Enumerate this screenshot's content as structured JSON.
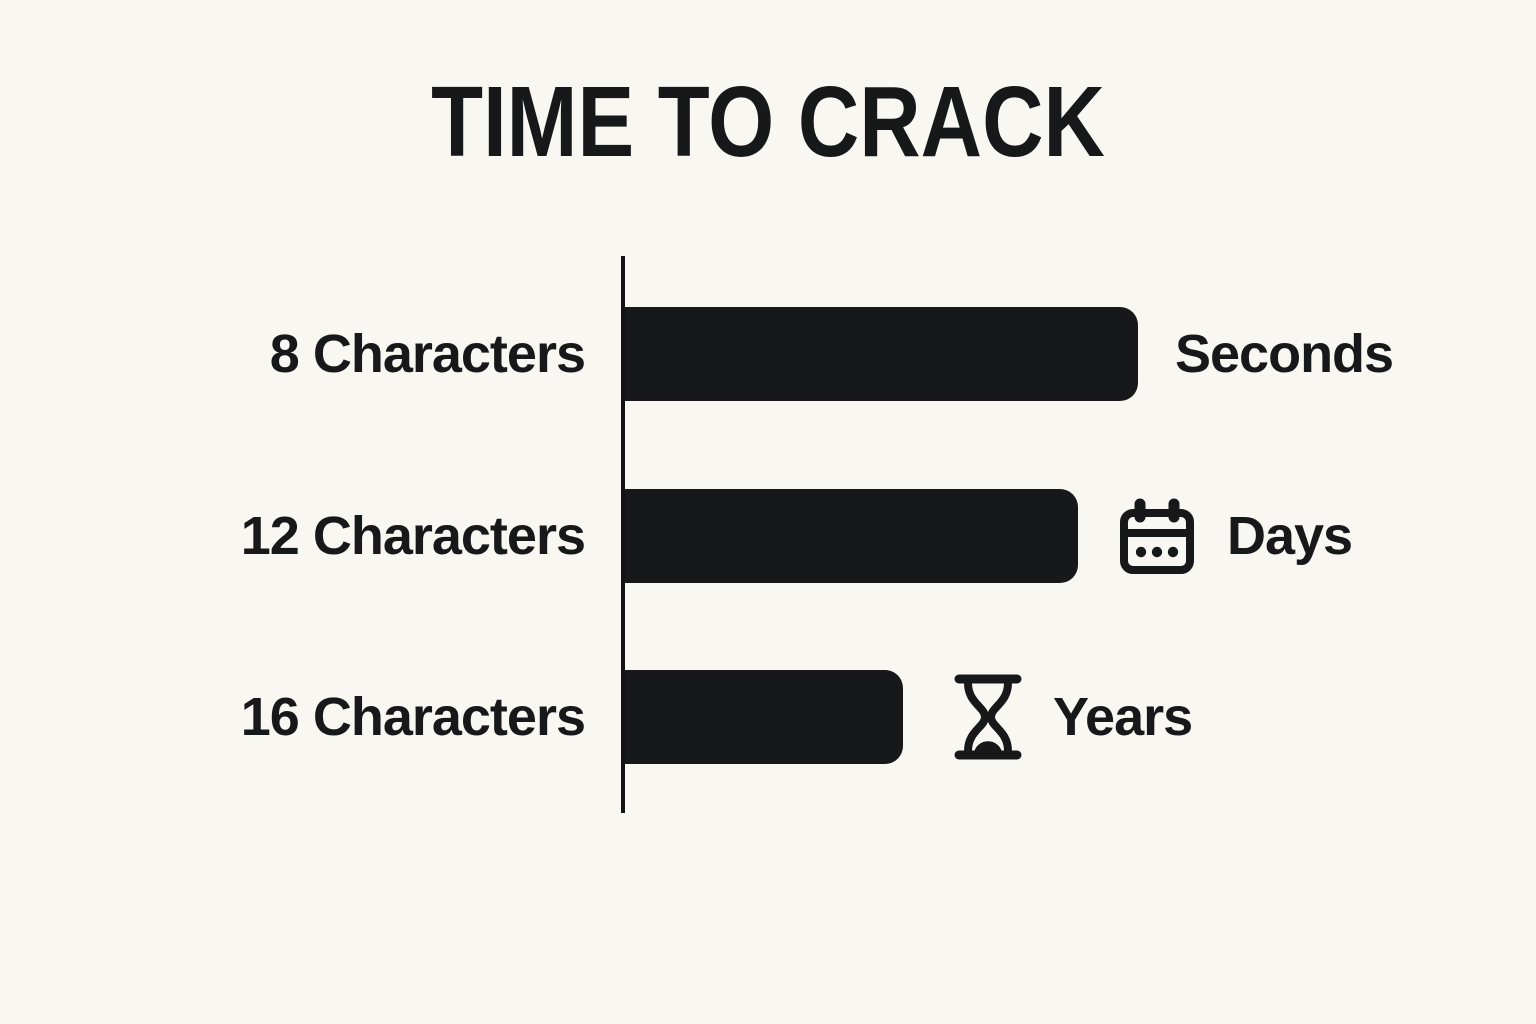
{
  "title": "TIME TO CRACK",
  "chart_data": {
    "type": "bar",
    "orientation": "horizontal",
    "title": "TIME TO CRACK",
    "categories": [
      "8 Characters",
      "12 Characters",
      "16 Characters"
    ],
    "series": [
      {
        "name": "time-to-crack",
        "values": [
          513,
          453,
          278
        ],
        "unit": "relative-bar-length-px"
      }
    ],
    "value_labels": [
      "Seconds",
      "Days",
      "Years"
    ],
    "icons": [
      "none",
      "calendar",
      "hourglass"
    ],
    "axis": {
      "numeric_ticks": false,
      "gridlines": false,
      "legend": false,
      "baseline": "vertical-left"
    }
  },
  "colors": {
    "background": "#f9f7f2",
    "bar": "#17181a",
    "ink": "#17181a",
    "axis": "#131313"
  }
}
